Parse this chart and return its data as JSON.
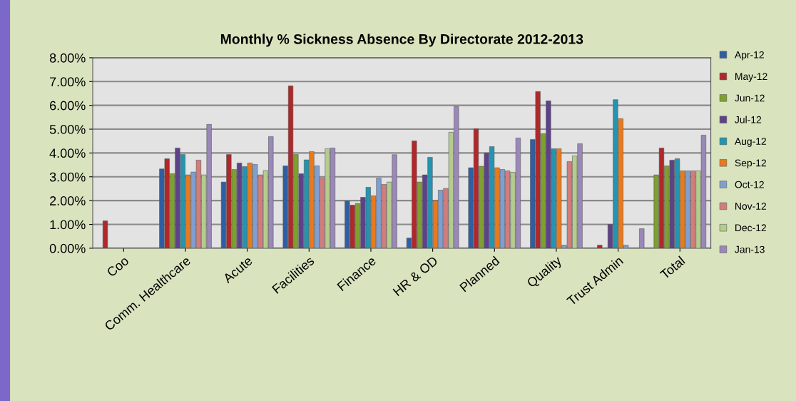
{
  "chart_data": {
    "type": "bar",
    "title": "Monthly % Sickness Absence By Directorate 2012-2013",
    "categories": [
      "Coo",
      "Comm. Healthcare",
      "Acute",
      "Facilities",
      "Finance",
      "HR & OD",
      "Planned",
      "Quality",
      "Trust Admin",
      "Total"
    ],
    "series": [
      {
        "name": "Apr-12",
        "color": "#2e5fa3",
        "colors": [
          "#2e5fa3",
          "#2e5fa3",
          "#2e5fa3",
          "#2e5fa3",
          "#2e5fa3",
          "#2e5fa3",
          "#2e5fa3",
          "#2e5fa3",
          "#2e5fa3",
          "#7da030"
        ],
        "values": [
          null,
          3.33,
          2.78,
          3.46,
          1.98,
          0.43,
          3.38,
          4.57,
          null,
          3.08
        ]
      },
      {
        "name": "May-12",
        "color": "#b0282a",
        "values": [
          1.15,
          3.76,
          3.94,
          6.82,
          1.81,
          4.51,
          5.02,
          6.58,
          0.13,
          4.21
        ]
      },
      {
        "name": "Jun-12",
        "color": "#7da030",
        "values": [
          null,
          3.13,
          3.31,
          3.94,
          1.88,
          2.78,
          3.44,
          4.81,
          null,
          3.46
        ]
      },
      {
        "name": "Jul-12",
        "color": "#5e4289",
        "values": [
          null,
          4.21,
          3.58,
          3.13,
          2.14,
          3.08,
          4.0,
          6.19,
          1.0,
          3.7
        ]
      },
      {
        "name": "Aug-12",
        "color": "#2494b0",
        "values": [
          null,
          3.94,
          3.43,
          3.71,
          2.56,
          3.82,
          4.27,
          4.18,
          6.24,
          3.76
        ]
      },
      {
        "name": "Sep-12",
        "color": "#e87a1e",
        "values": [
          null,
          3.08,
          3.58,
          4.06,
          2.2,
          2.0,
          3.38,
          4.18,
          5.44,
          3.25
        ]
      },
      {
        "name": "Oct-12",
        "color": "#7f9fd0",
        "values": [
          null,
          3.2,
          3.52,
          3.46,
          2.94,
          2.44,
          3.31,
          0.13,
          0.13,
          3.25
        ]
      },
      {
        "name": "Nov-12",
        "color": "#d27c7c",
        "values": [
          null,
          3.7,
          3.08,
          2.95,
          2.68,
          2.51,
          3.25,
          3.64,
          null,
          3.25
        ]
      },
      {
        "name": "Dec-12",
        "color": "#b5cc8e",
        "values": [
          null,
          3.08,
          3.26,
          4.18,
          2.78,
          4.87,
          3.19,
          3.88,
          null,
          3.25
        ]
      },
      {
        "name": "Jan-13",
        "color": "#9a88b8",
        "values": [
          null,
          5.2,
          4.69,
          4.21,
          3.93,
          5.95,
          4.63,
          4.39,
          0.82,
          4.75
        ]
      }
    ],
    "ylim": [
      0,
      8
    ],
    "yticks": [
      {
        "value": 0,
        "label": "0.00%"
      },
      {
        "value": 1,
        "label": "1.00%"
      },
      {
        "value": 2,
        "label": "2.00%"
      },
      {
        "value": 3,
        "label": "3.00%"
      },
      {
        "value": 4,
        "label": "4.00%"
      },
      {
        "value": 5,
        "label": "5.00%"
      },
      {
        "value": 6,
        "label": "6.00%"
      },
      {
        "value": 7,
        "label": "7.00%"
      },
      {
        "value": 8,
        "label": "8.00%"
      }
    ],
    "grid": "y",
    "legend": "right"
  }
}
